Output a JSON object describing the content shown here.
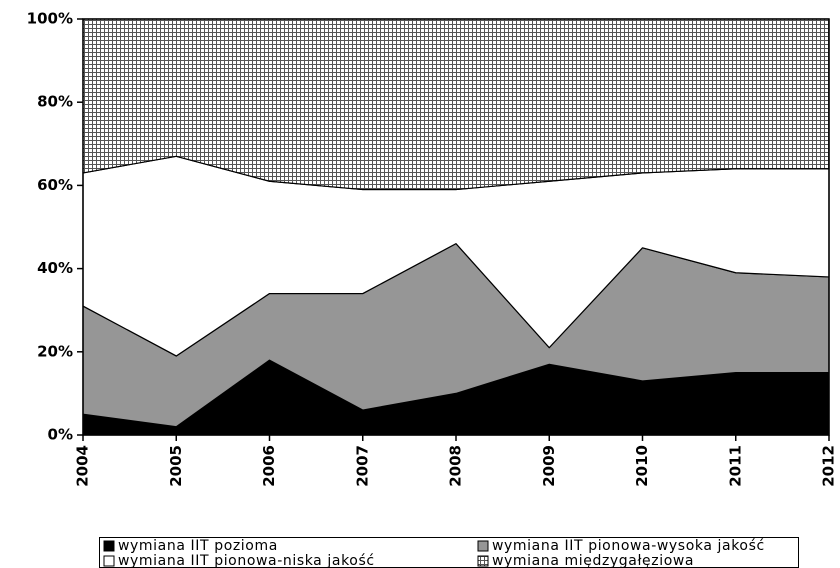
{
  "chart_data": {
    "type": "stacked_area_percent",
    "categories": [
      "2004",
      "2005",
      "2006",
      "2007",
      "2008",
      "2009",
      "2010",
      "2011",
      "2012"
    ],
    "series": [
      {
        "name": "wymiana IIT pozioma",
        "color": "#000000",
        "values": [
          5,
          2,
          18,
          6,
          10,
          17,
          13,
          15,
          15
        ]
      },
      {
        "name": "wymiana IIT pionowa-wysoka jakość",
        "color": "#969696",
        "values": [
          26,
          17,
          16,
          28,
          36,
          4,
          32,
          24,
          23
        ]
      },
      {
        "name": "wymiana IIT pionowa-niska jakość",
        "color": "#ffffff",
        "values": [
          32,
          48,
          27,
          25,
          13,
          40,
          18,
          25,
          26
        ]
      },
      {
        "name": "wymiana międzygałęziowa",
        "color": "#ffffff",
        "pattern": "grid",
        "values": [
          37,
          33,
          39,
          41,
          41,
          39,
          37,
          36,
          36
        ]
      }
    ],
    "ylim": [
      0,
      100
    ],
    "yticks": [
      {
        "value": 0,
        "label": "0%"
      },
      {
        "value": 20,
        "label": "20%"
      },
      {
        "value": 40,
        "label": "40%"
      },
      {
        "value": 60,
        "label": "60%"
      },
      {
        "value": 80,
        "label": "80%"
      },
      {
        "value": 100,
        "label": "100%"
      }
    ]
  }
}
